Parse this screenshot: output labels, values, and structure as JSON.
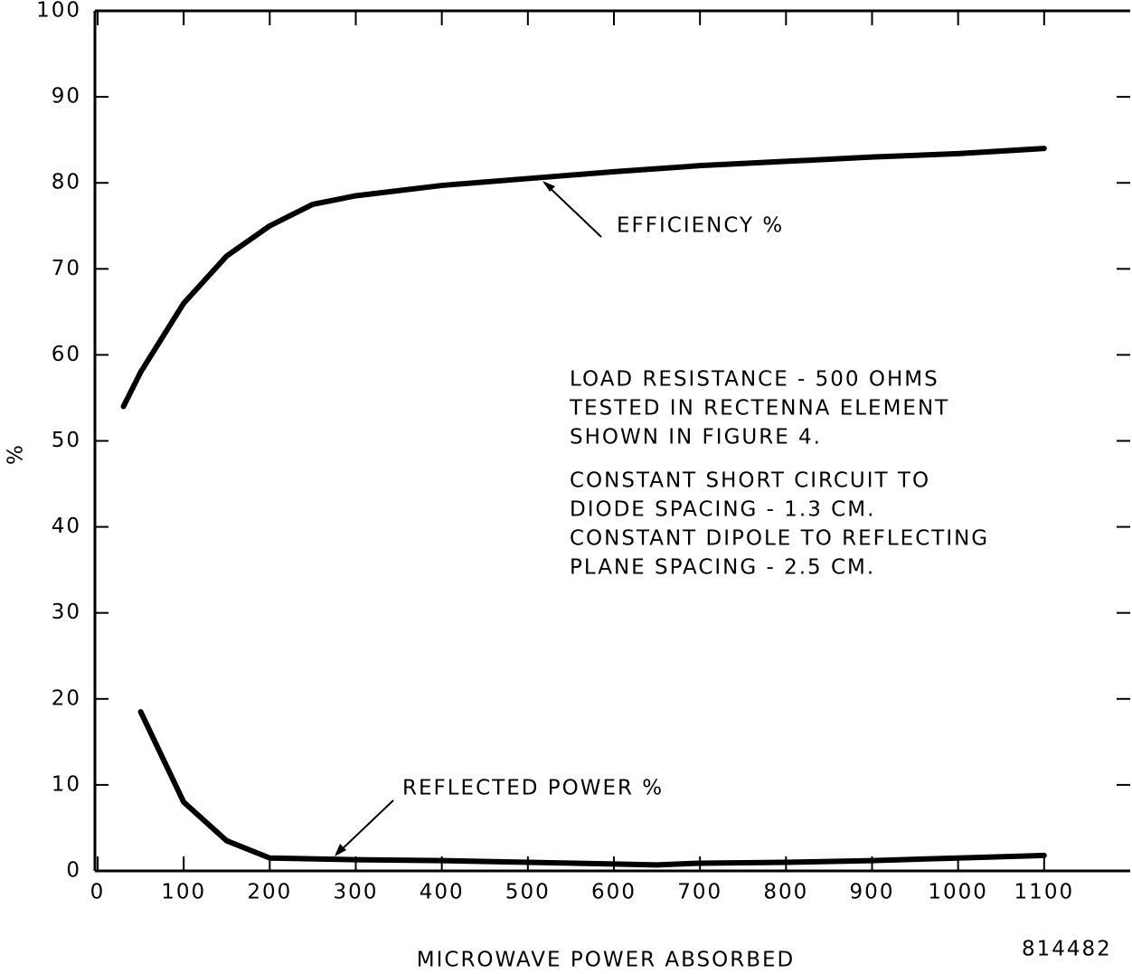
{
  "chart_data": {
    "type": "line",
    "xlabel": "MICROWAVE POWER ABSORBED",
    "ylabel": "%",
    "xlim": [
      0,
      1200
    ],
    "ylim": [
      0,
      100
    ],
    "xticks": [
      0,
      100,
      200,
      300,
      400,
      500,
      600,
      700,
      800,
      900,
      1000,
      1100
    ],
    "yticks": [
      0,
      10,
      20,
      30,
      40,
      50,
      60,
      70,
      80,
      90,
      100
    ],
    "series": [
      {
        "name": "EFFICIENCY %",
        "color": "#000000",
        "x": [
          30,
          50,
          100,
          150,
          200,
          250,
          300,
          400,
          500,
          600,
          700,
          800,
          900,
          1000,
          1100
        ],
        "values": [
          54,
          58,
          66,
          71.5,
          75,
          77.5,
          78.5,
          79.7,
          80.5,
          81.3,
          82,
          82.5,
          83,
          83.4,
          84
        ]
      },
      {
        "name": "REFLECTED POWER %",
        "color": "#000000",
        "x": [
          50,
          100,
          150,
          200,
          300,
          400,
          500,
          600,
          650,
          700,
          800,
          900,
          1000,
          1100
        ],
        "values": [
          18.5,
          8,
          3.5,
          1.5,
          1.3,
          1.2,
          1,
          0.8,
          0.7,
          0.9,
          1,
          1.2,
          1.5,
          1.8
        ]
      }
    ],
    "notes": [
      "LOAD RESISTANCE - 500 OHMS",
      "TESTED IN RECTENNA ELEMENT",
      "SHOWN IN FIGURE 4.",
      "CONSTANT SHORT CIRCUIT TO",
      "DIODE SPACING - 1.3 CM.",
      "CONSTANT DIPOLE TO REFLECTING",
      "PLANE SPACING - 2.5 CM."
    ],
    "figure_number": "814482"
  }
}
